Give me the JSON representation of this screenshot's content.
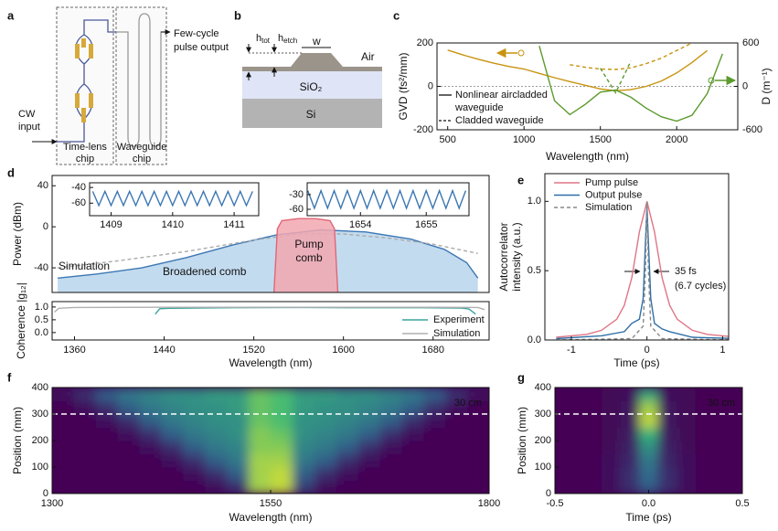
{
  "panel_labels": [
    "a",
    "b",
    "c",
    "d",
    "e",
    "f",
    "g"
  ],
  "diagram_a": {
    "output": [
      "Few-cycle",
      "pulse output"
    ],
    "input": [
      "CW",
      "input"
    ],
    "chip1": [
      "Time-lens",
      "chip"
    ],
    "chip2": [
      "Waveguide",
      "chip"
    ]
  },
  "diagram_b": {
    "h_tot": [
      "h",
      "tot"
    ],
    "h_etch": [
      "h",
      "etch"
    ],
    "w": "w",
    "air": "Air",
    "sio2": "SiO₂",
    "si": "Si"
  },
  "chart_data": [
    {
      "type": "line",
      "xlabel": "Wavelength (nm)",
      "ylabel": "GVD (fs²/mm)",
      "y2label": "D (m⁻¹)",
      "x": [
        400,
        500,
        600,
        700,
        800,
        900,
        1000,
        1100,
        1200,
        1300,
        1400,
        1500,
        1600,
        1700,
        1800,
        1900,
        2000,
        2100,
        2200,
        2300
      ],
      "xlim": [
        430,
        2400
      ],
      "xticks": [
        500,
        1000,
        1500,
        2000
      ],
      "ylim": [
        -200,
        200
      ],
      "yticks": [
        -200,
        0,
        200
      ],
      "y2lim": [
        -600,
        600
      ],
      "y2ticks": [
        -600,
        0,
        600
      ],
      "hline": 0,
      "series": [
        {
          "color": "#c8930f",
          "style": "line",
          "values": [
            null,
            167,
            145,
            125,
            107,
            92,
            80,
            60,
            40,
            22,
            5,
            -12,
            -20,
            -15,
            0,
            25,
            62,
            110,
            165,
            null
          ]
        },
        {
          "color": "#c8930f",
          "style": "dashed",
          "values": [
            null,
            null,
            null,
            null,
            null,
            null,
            null,
            null,
            null,
            100,
            88,
            80,
            78,
            85,
            105,
            130,
            165,
            200,
            null,
            null
          ]
        },
        {
          "color": "#5b9a2c",
          "style": "line",
          "axis": "y2",
          "values": [
            null,
            null,
            null,
            null,
            null,
            null,
            null,
            560,
            -200,
            -390,
            -250,
            -80,
            -50,
            -150,
            -300,
            -420,
            -480,
            -400,
            -100,
            450
          ]
        },
        {
          "color": "#5b9a2c",
          "style": "dashed",
          "axis": "y2",
          "values": [
            null,
            null,
            null,
            null,
            null,
            null,
            null,
            null,
            null,
            null,
            null,
            250,
            -90,
            350,
            null,
            null,
            null,
            null,
            null,
            null
          ]
        }
      ],
      "legend": [
        {
          "label": [
            "Nonlinear aircladded",
            "waveguide"
          ],
          "dash": false
        },
        {
          "label": [
            "Cladded waveguide"
          ],
          "dash": true
        }
      ]
    },
    {
      "type": "line",
      "ylabel": "Power (dBm)",
      "xlim": [
        1340,
        1730
      ],
      "ylim": [
        -64,
        50
      ],
      "yticks": [
        -40,
        0,
        40
      ],
      "series": [
        {
          "color": "#3b77b3",
          "fill": "#b9d5ec",
          "style": "area",
          "x": [
            1345,
            1380,
            1420,
            1460,
            1500,
            1540,
            1580,
            1620,
            1660,
            1690,
            1710,
            1720
          ],
          "values": [
            -50,
            -46,
            -40,
            -30,
            -18,
            -8,
            -3,
            -5,
            -12,
            -22,
            -35,
            -50
          ]
        },
        {
          "color": "#aaaaaa",
          "style": "dashed",
          "x": [
            1345,
            1400,
            1460,
            1520,
            1560,
            1600,
            1640,
            1680,
            1720
          ],
          "values": [
            -40,
            -33,
            -24,
            -13,
            -7,
            -7,
            -11,
            -17,
            -26
          ]
        },
        {
          "color": "#e06675",
          "fill": "#f2a7b0",
          "style": "area",
          "x": [
            1538,
            1541,
            1545,
            1560,
            1575,
            1588,
            1592,
            1595
          ],
          "values": [
            -64,
            -2,
            6,
            8,
            8,
            6,
            -2,
            -64
          ]
        }
      ],
      "annotations": {
        "simulation": "Simulation",
        "broadened": "Broadened comb",
        "pump": [
          "Pump",
          "comb"
        ]
      }
    },
    {
      "type": "line",
      "xlim": [
        1408.65,
        1411.4
      ],
      "xticks": [
        1409,
        1410,
        1411
      ],
      "ylim": [
        -76,
        -34
      ],
      "yticks": [
        -40,
        -60
      ],
      "series": [
        {
          "color": "#3b77b3",
          "style": "line",
          "x": [
            1408.7,
            1408.8,
            1408.9,
            1409,
            1409.1,
            1409.2,
            1409.3,
            1409.4,
            1409.5,
            1409.6,
            1409.7,
            1409.8,
            1409.9,
            1410,
            1410.1,
            1410.2,
            1410.3,
            1410.4,
            1410.5,
            1410.6,
            1410.7,
            1410.8,
            1410.9,
            1411,
            1411.1,
            1411.2,
            1411.3
          ],
          "values": [
            -45,
            -63,
            -45,
            -63,
            -45,
            -63,
            -45,
            -63,
            -45,
            -63,
            -45,
            -63,
            -45,
            -63,
            -45,
            -63,
            -45,
            -63,
            -45,
            -63,
            -45,
            -63,
            -45,
            -63,
            -45,
            -63,
            -45
          ]
        }
      ]
    },
    {
      "type": "line",
      "xlim": [
        1653.19,
        1655.65
      ],
      "xticks": [
        1654,
        1655
      ],
      "ylim": [
        -73,
        -6
      ],
      "yticks": [
        -30,
        -60
      ],
      "series": [
        {
          "color": "#3b77b3",
          "style": "line",
          "x": [
            1653.2,
            1653.3,
            1653.4,
            1653.5,
            1653.6,
            1653.7,
            1653.8,
            1653.9,
            1654,
            1654.1,
            1654.2,
            1654.3,
            1654.4,
            1654.5,
            1654.6,
            1654.7,
            1654.8,
            1654.9,
            1655,
            1655.1,
            1655.2,
            1655.3,
            1655.4,
            1655.5,
            1655.6
          ],
          "values": [
            -22,
            -58,
            -22,
            -58,
            -22,
            -58,
            -22,
            -58,
            -22,
            -58,
            -22,
            -58,
            -22,
            -58,
            -22,
            -58,
            -22,
            -58,
            -22,
            -58,
            -22,
            -58,
            -22,
            -58,
            -22
          ]
        }
      ]
    },
    {
      "type": "line",
      "xlabel": "Wavelength (nm)",
      "ylabel": "Coherence |g₁₂|",
      "xlim": [
        1340,
        1730
      ],
      "xticks": [
        1360,
        1440,
        1520,
        1600,
        1680
      ],
      "ylim": [
        -0.29,
        1.21
      ],
      "yticks": [
        {
          "value": 0,
          "label": "0.0"
        },
        0.5,
        {
          "value": 1,
          "label": "1.0"
        }
      ],
      "series": [
        {
          "name": "Experiment",
          "color": "#3aa39c",
          "style": "line",
          "x": [
            1432,
            1436,
            1445,
            1500,
            1560,
            1620,
            1670,
            1705,
            1712,
            1718
          ],
          "values": [
            0.72,
            0.93,
            0.95,
            0.97,
            0.98,
            0.97,
            0.97,
            0.96,
            0.92,
            0.72
          ]
        },
        {
          "name": "Simulation",
          "color": "#b0b0b0",
          "style": "line",
          "x": [
            1342,
            1346,
            1360,
            1440,
            1520,
            1600,
            1680,
            1720,
            1726
          ],
          "values": [
            0.8,
            0.95,
            0.98,
            0.99,
            0.99,
            0.99,
            0.99,
            0.98,
            0.9
          ]
        }
      ]
    },
    {
      "type": "line",
      "xlabel": "Time (ps)",
      "ylabel": [
        "Autocorrelator",
        "intensity (a.u.)"
      ],
      "xlim": [
        -1.35,
        1.08
      ],
      "xticks": [
        -1,
        0,
        1
      ],
      "ylim": [
        0,
        1.2
      ],
      "yticks": [
        {
          "value": 0,
          "label": "0.0"
        },
        0.5,
        {
          "value": 1,
          "label": "1.0"
        }
      ],
      "series": [
        {
          "name": "Pump pulse",
          "color": "#e07585",
          "style": "line",
          "x": [
            -1.2,
            -0.8,
            -0.6,
            -0.4,
            -0.3,
            -0.2,
            -0.1,
            0,
            0.1,
            0.2,
            0.3,
            0.4,
            0.6,
            0.8,
            1.2
          ],
          "values": [
            0.02,
            0.04,
            0.07,
            0.15,
            0.25,
            0.45,
            0.78,
            1.0,
            0.78,
            0.45,
            0.25,
            0.15,
            0.07,
            0.04,
            0.02
          ]
        },
        {
          "name": "Output pulse",
          "color": "#2f6fa8",
          "style": "line",
          "x": [
            -1.2,
            -0.6,
            -0.3,
            -0.2,
            -0.1,
            -0.05,
            -0.02,
            0,
            0.02,
            0.05,
            0.1,
            0.2,
            0.3,
            0.6,
            1.2
          ],
          "values": [
            0.01,
            0.03,
            0.06,
            0.12,
            0.15,
            0.3,
            0.7,
            0.96,
            0.7,
            0.3,
            0.12,
            0.08,
            0.06,
            0.02,
            0.01
          ]
        },
        {
          "name": "Simulation",
          "color": "#888888",
          "style": "dashed",
          "x": [
            -1.2,
            -0.2,
            -0.05,
            -0.02,
            0,
            0.02,
            0.05,
            0.2,
            1.2
          ],
          "values": [
            0,
            0.01,
            0.1,
            0.5,
            1.0,
            0.5,
            0.1,
            0.01,
            0
          ]
        }
      ],
      "annotations": [
        "35 fs",
        "(6.7 cycles)"
      ]
    },
    {
      "type": "heatmap",
      "xlabel": "Wavelength (nm)",
      "ylabel": "Position (mm)",
      "xlim": [
        1300,
        1800
      ],
      "xticks": [
        1300,
        1550,
        1800
      ],
      "ylim": [
        0,
        400
      ],
      "yticks": [
        0,
        100,
        200,
        300,
        400
      ],
      "hline": 300,
      "annotation": "30 cm",
      "zlim": [
        0,
        1
      ],
      "colormap": [
        "#440154",
        "#31688e",
        "#35b779",
        "#fde725"
      ],
      "x": [
        1312.5,
        1337.5,
        1362.5,
        1387.5,
        1412.5,
        1437.5,
        1462.5,
        1487.5,
        1512.5,
        1537.5,
        1562.5,
        1587.5,
        1612.5,
        1637.5,
        1662.5,
        1687.5,
        1712.5,
        1737.5,
        1762.5,
        1787.5
      ],
      "y": [
        25,
        75,
        125,
        175,
        225,
        275,
        325,
        375
      ],
      "z": [
        [
          0,
          0,
          0,
          0,
          0,
          0,
          0,
          0.05,
          0.15,
          0.85,
          0.9,
          0.2,
          0.05,
          0,
          0,
          0,
          0,
          0,
          0,
          0
        ],
        [
          0,
          0,
          0,
          0,
          0,
          0,
          0.05,
          0.15,
          0.3,
          0.85,
          0.9,
          0.3,
          0.15,
          0.05,
          0,
          0,
          0,
          0,
          0,
          0
        ],
        [
          0,
          0,
          0,
          0,
          0,
          0.05,
          0.15,
          0.3,
          0.4,
          0.85,
          0.85,
          0.4,
          0.3,
          0.15,
          0.05,
          0,
          0,
          0,
          0,
          0
        ],
        [
          0,
          0,
          0,
          0,
          0.05,
          0.15,
          0.3,
          0.4,
          0.45,
          0.8,
          0.8,
          0.45,
          0.4,
          0.3,
          0.15,
          0.05,
          0,
          0,
          0,
          0
        ],
        [
          0,
          0,
          0,
          0.05,
          0.15,
          0.3,
          0.4,
          0.45,
          0.5,
          0.8,
          0.75,
          0.5,
          0.45,
          0.4,
          0.3,
          0.15,
          0.05,
          0,
          0,
          0
        ],
        [
          0,
          0,
          0.05,
          0.15,
          0.3,
          0.4,
          0.45,
          0.5,
          0.5,
          0.75,
          0.7,
          0.5,
          0.5,
          0.45,
          0.4,
          0.3,
          0.15,
          0.05,
          0,
          0
        ],
        [
          0,
          0.05,
          0.15,
          0.3,
          0.4,
          0.45,
          0.5,
          0.5,
          0.55,
          0.75,
          0.7,
          0.55,
          0.5,
          0.5,
          0.45,
          0.4,
          0.3,
          0.15,
          0.05,
          0
        ],
        [
          0.05,
          0.15,
          0.3,
          0.4,
          0.45,
          0.5,
          0.5,
          0.55,
          0.55,
          0.75,
          0.7,
          0.55,
          0.55,
          0.5,
          0.5,
          0.45,
          0.4,
          0.3,
          0.15,
          0.05
        ]
      ]
    },
    {
      "type": "heatmap",
      "xlabel": "Time (ps)",
      "ylabel": "Position (mm)",
      "xlim": [
        -0.5,
        0.5
      ],
      "xticks": [
        -0.5,
        {
          "value": 0,
          "label": "0.0"
        },
        0.5
      ],
      "ylim": [
        0,
        400
      ],
      "yticks": [
        0,
        100,
        200,
        300,
        400
      ],
      "hline": 300,
      "annotation": "30 cm",
      "zlim": [
        0,
        1
      ],
      "colormap": [
        "#440154",
        "#31688e",
        "#35b779",
        "#fde725"
      ],
      "x": [
        -0.5,
        -0.4,
        -0.3,
        -0.2,
        -0.1,
        0,
        0.1,
        0.2,
        0.3,
        0.4,
        0.5
      ],
      "y": [
        25,
        75,
        125,
        175,
        225,
        275,
        325,
        375
      ],
      "z": [
        [
          0,
          0,
          0,
          0.05,
          0.15,
          0.3,
          0.15,
          0.05,
          0,
          0,
          0
        ],
        [
          0,
          0,
          0,
          0.05,
          0.15,
          0.35,
          0.15,
          0.05,
          0,
          0,
          0
        ],
        [
          0,
          0,
          0,
          0.05,
          0.12,
          0.4,
          0.12,
          0.05,
          0,
          0,
          0
        ],
        [
          0,
          0,
          0,
          0.03,
          0.1,
          0.5,
          0.1,
          0.03,
          0,
          0,
          0
        ],
        [
          0,
          0,
          0,
          0.02,
          0.08,
          0.65,
          0.08,
          0.02,
          0,
          0,
          0
        ],
        [
          0,
          0,
          0,
          0.02,
          0.06,
          0.9,
          0.06,
          0.02,
          0,
          0,
          0
        ],
        [
          0,
          0,
          0,
          0.02,
          0.06,
          0.85,
          0.06,
          0.02,
          0,
          0,
          0
        ],
        [
          0,
          0,
          0,
          0.02,
          0.05,
          0.6,
          0.05,
          0.02,
          0,
          0,
          0
        ]
      ]
    }
  ]
}
